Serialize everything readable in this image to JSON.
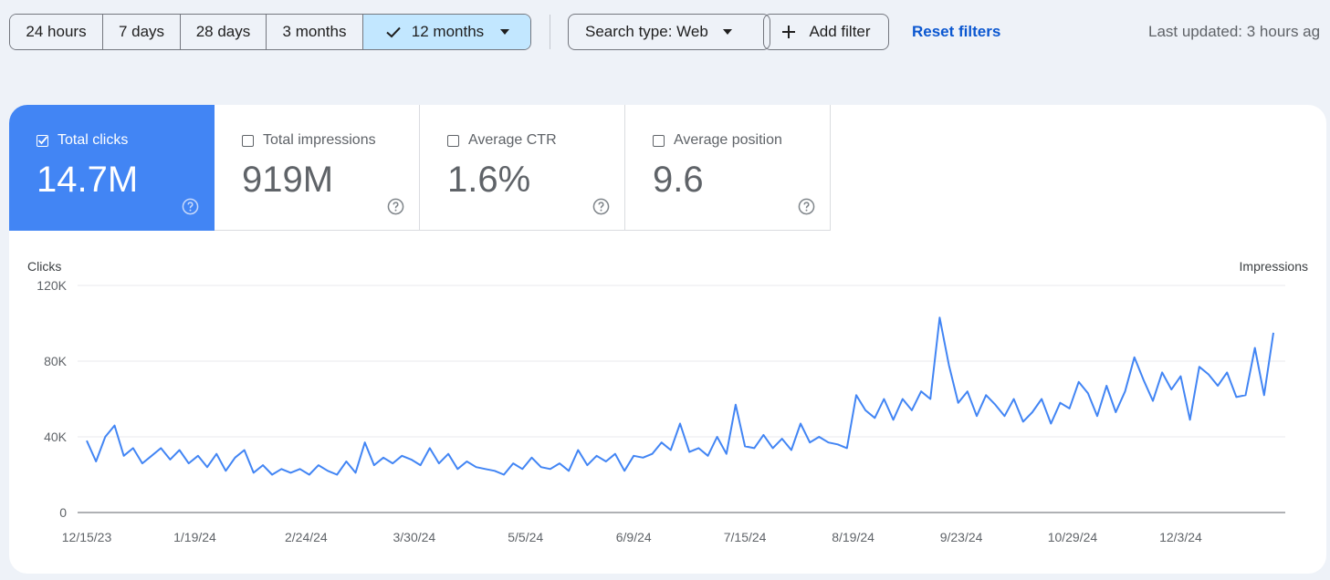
{
  "toolbar": {
    "date_ranges": [
      "24 hours",
      "7 days",
      "28 days",
      "3 months",
      "12 months"
    ],
    "active_range": "12 months",
    "search_type": "Search type: Web",
    "add_filter": "Add filter",
    "reset_filters": "Reset filters",
    "last_updated": "Last updated: 3 hours ag"
  },
  "metrics": [
    {
      "label": "Total clicks",
      "value": "14.7M",
      "selected": true
    },
    {
      "label": "Total impressions",
      "value": "919M",
      "selected": false
    },
    {
      "label": "Average CTR",
      "value": "1.6%",
      "selected": false
    },
    {
      "label": "Average position",
      "value": "9.6",
      "selected": false
    }
  ],
  "colors": {
    "accent": "#4285f4",
    "link": "#0b57d0",
    "active_chip": "#c2e7ff",
    "background": "#eef2f8"
  },
  "chart_data": {
    "type": "line",
    "ylabel_left": "Clicks",
    "ylabel_right": "Impressions",
    "ylim": [
      0,
      120000
    ],
    "y_ticks": [
      "0",
      "40K",
      "80K",
      "120K"
    ],
    "x_ticks": [
      "12/15/23",
      "1/19/24",
      "2/24/24",
      "3/30/24",
      "5/5/24",
      "6/9/24",
      "7/15/24",
      "8/19/24",
      "9/23/24",
      "10/29/24",
      "12/3/24"
    ],
    "grid": true,
    "series": [
      {
        "color": "#4285f4",
        "start": "2023-12-15",
        "interval_days": 3,
        "values": [
          38000,
          27000,
          40000,
          46000,
          30000,
          34000,
          26000,
          30000,
          34000,
          28000,
          33000,
          26000,
          30000,
          24000,
          31000,
          22000,
          29000,
          33000,
          21000,
          25000,
          20000,
          23000,
          21000,
          23000,
          20000,
          25000,
          22000,
          20000,
          27000,
          21000,
          37000,
          25000,
          29000,
          26000,
          30000,
          28000,
          25000,
          34000,
          26000,
          31000,
          23000,
          27000,
          24000,
          23000,
          22000,
          20000,
          26000,
          23000,
          29000,
          24000,
          23000,
          26000,
          22000,
          33000,
          25000,
          30000,
          27000,
          31000,
          22000,
          30000,
          29000,
          31000,
          37000,
          33000,
          47000,
          32000,
          34000,
          30000,
          40000,
          31000,
          57000,
          35000,
          34000,
          41000,
          34000,
          39000,
          33000,
          47000,
          37000,
          40000,
          37000,
          36000,
          34000,
          62000,
          54000,
          50000,
          60000,
          49000,
          60000,
          54000,
          64000,
          60000,
          103000,
          78000,
          58000,
          64000,
          51000,
          62000,
          57000,
          51000,
          60000,
          48000,
          53000,
          60000,
          47000,
          58000,
          55000,
          69000,
          63000,
          51000,
          67000,
          53000,
          64000,
          82000,
          70000,
          59000,
          74000,
          65000,
          72000,
          49000,
          77000,
          73000,
          67000,
          74000,
          61000,
          62000,
          87000,
          62000,
          95000
        ]
      }
    ]
  }
}
